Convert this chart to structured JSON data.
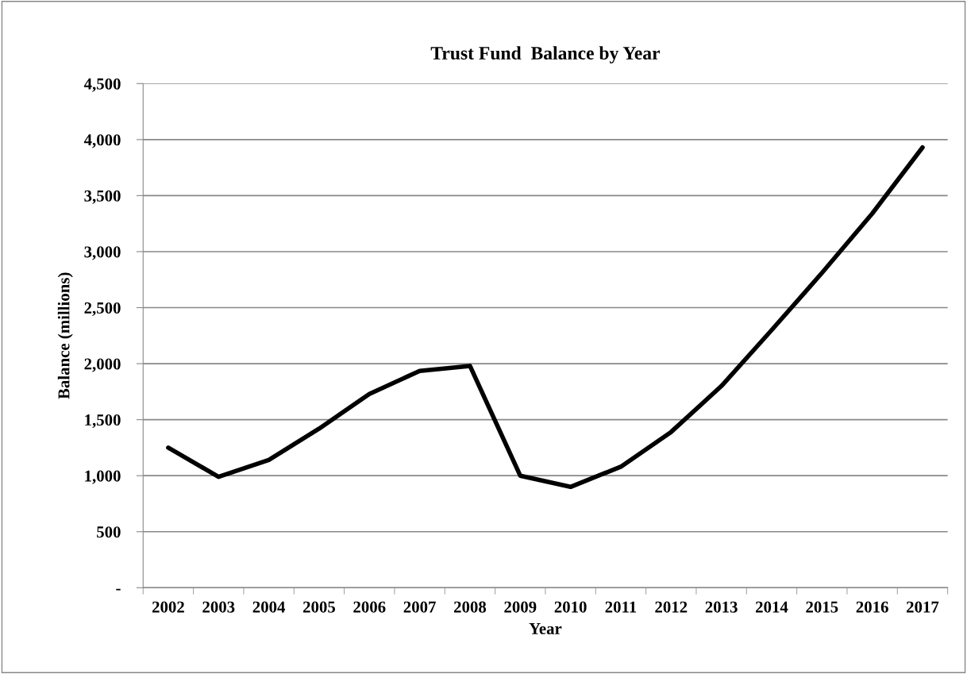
{
  "chart_data": {
    "type": "line",
    "title": "Trust Fund  Balance by Year",
    "xlabel": "Year",
    "ylabel": "Balance (millions)",
    "categories": [
      "2002",
      "2003",
      "2004",
      "2005",
      "2006",
      "2007",
      "2008",
      "2009",
      "2010",
      "2011",
      "2012",
      "2013",
      "2014",
      "2015",
      "2016",
      "2017"
    ],
    "series": [
      {
        "color": "#000000",
        "values": [
          1250,
          990,
          1140,
          1420,
          1730,
          1935,
          1980,
          1000,
          900,
          1080,
          1390,
          1800,
          2300,
          2810,
          3340,
          3930
        ]
      }
    ],
    "ylim": [
      0,
      4500
    ],
    "yticks": [
      {
        "value": 0,
        "label": "-"
      },
      {
        "value": 500,
        "label": "500"
      },
      {
        "value": 1000,
        "label": "1,000"
      },
      {
        "value": 1500,
        "label": "1,500"
      },
      {
        "value": 2000,
        "label": "2,000"
      },
      {
        "value": 2500,
        "label": "2,500"
      },
      {
        "value": 3000,
        "label": "3,000"
      },
      {
        "value": 3500,
        "label": "3,500"
      },
      {
        "value": 4000,
        "label": "4,000"
      },
      {
        "value": 4500,
        "label": "4,500"
      }
    ],
    "grid": "y",
    "legend": false,
    "marker": "none",
    "line_style": "solid"
  }
}
